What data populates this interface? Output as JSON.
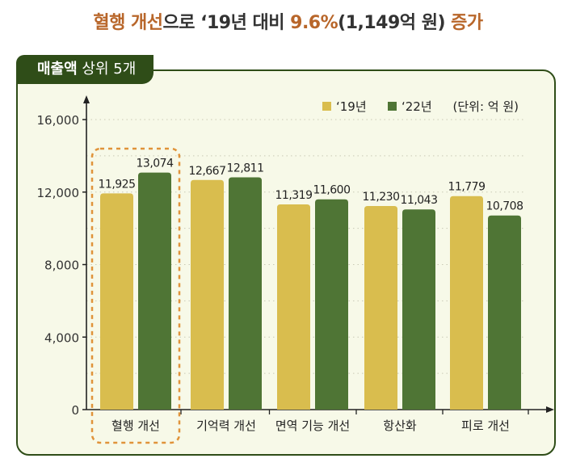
{
  "headline": {
    "accent1": "혈행 개선",
    "mid": "으로 ‘19년 대비 ",
    "accent2": "9.6%",
    "mid2": "(1,149억 원) ",
    "accent3": "증가"
  },
  "tag": {
    "bold": "매출액",
    "rest": " 상위 5개"
  },
  "colors": {
    "y19": "#d9bd4e",
    "y22": "#4f7535",
    "accent": "#b8662a",
    "dark": "#2f4d18",
    "highlight": "#e0933a"
  },
  "chart_data": {
    "type": "bar",
    "categories": [
      "혈행 개선",
      "기억력 개선",
      "면역 기능 개선",
      "항산화",
      "피로 개선"
    ],
    "series": [
      {
        "name": "‘19년",
        "values": [
          11925,
          12667,
          11319,
          11230,
          11779
        ],
        "labels": [
          "11,925",
          "12,667",
          "11,319",
          "11,230",
          "11,779"
        ]
      },
      {
        "name": "‘22년",
        "values": [
          13074,
          12811,
          11600,
          11043,
          10708
        ],
        "labels": [
          "13,074",
          "12,811",
          "11,600",
          "11,043",
          "10,708"
        ]
      }
    ],
    "unit_label": "(단위: 억 원)",
    "yticks": [
      0,
      4000,
      8000,
      12000,
      16000
    ],
    "ytick_labels": [
      "0",
      "4,000",
      "8,000",
      "12,000",
      "16,000"
    ],
    "ylim": [
      0,
      16000
    ],
    "grid": true,
    "legend": "top-right",
    "highlight_category": "혈행 개선"
  }
}
